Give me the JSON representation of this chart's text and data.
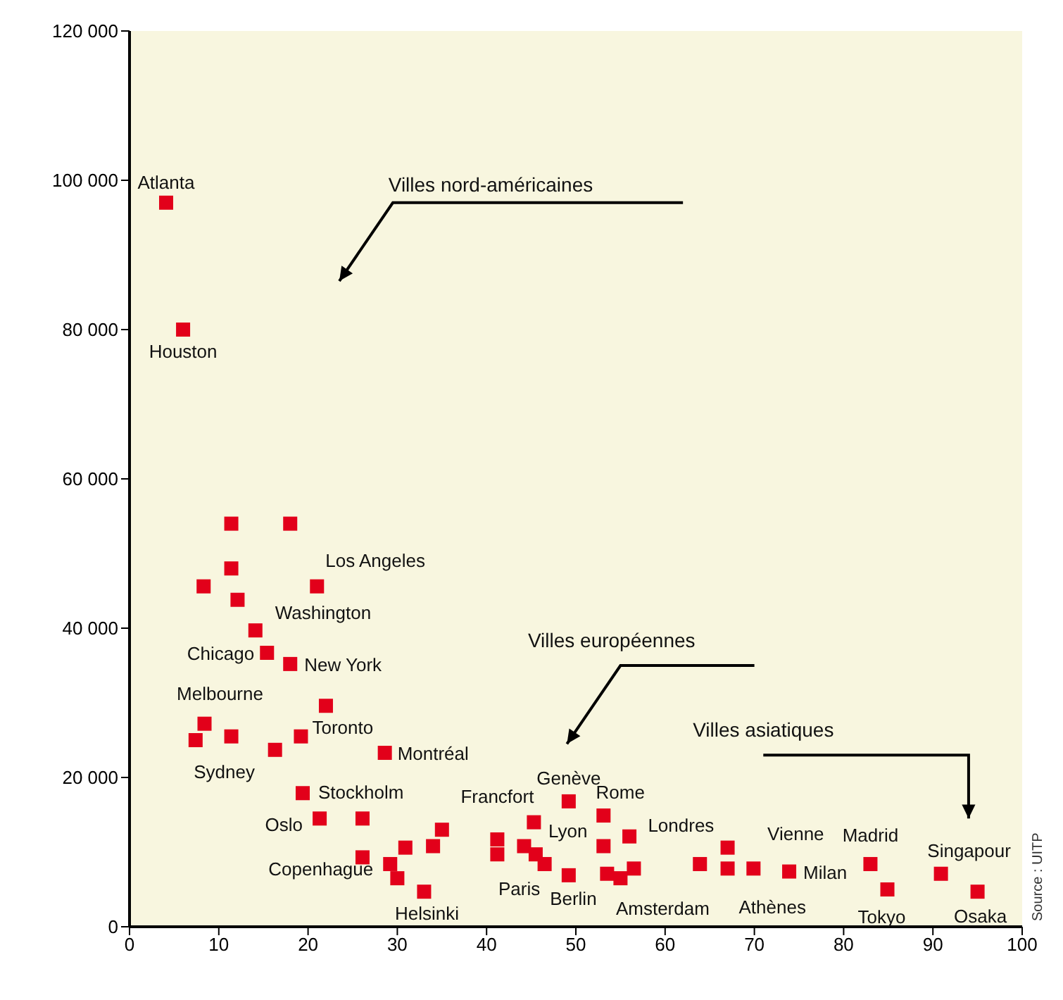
{
  "chart_data": {
    "type": "scatter",
    "marker": "square",
    "grid": false,
    "legend": false,
    "xlim": [
      0,
      100
    ],
    "xticks": [
      0,
      10,
      20,
      30,
      40,
      50,
      60,
      70,
      80,
      90,
      100
    ],
    "ylim": [
      0,
      120000
    ],
    "yticks": [
      {
        "value": 0,
        "label": "0"
      },
      {
        "value": 20000,
        "label": "20 000"
      },
      {
        "value": 40000,
        "label": "40 000"
      },
      {
        "value": 60000,
        "label": "60 000"
      },
      {
        "value": 80000,
        "label": "80 000"
      },
      {
        "value": 100000,
        "label": "100 000"
      },
      {
        "value": 120000,
        "label": "120 000"
      }
    ],
    "series": [
      {
        "color": "#e2001a",
        "x": [
          4.1,
          6,
          11.4,
          18,
          11.4,
          8.3,
          12.1,
          21,
          14.1,
          15.4,
          18,
          22,
          8.4,
          7.4,
          11.4,
          16.3,
          19.2,
          28.6,
          19.4,
          21.3,
          26.1,
          26.1,
          29.2,
          30,
          33,
          30.9,
          34,
          35,
          41.2,
          41.2,
          45.3,
          44.2,
          45.5,
          46.5,
          49.2,
          49.2,
          53.1,
          53.1,
          56,
          53.5,
          56.5,
          55,
          63.9,
          67,
          67,
          69.9,
          73.9,
          83,
          84.9,
          90.9,
          95
        ],
        "values": [
          97000,
          80000,
          54000,
          54000,
          48000,
          45600,
          43800,
          45600,
          39700,
          36700,
          35200,
          29600,
          27200,
          25000,
          25500,
          23700,
          25500,
          23300,
          17900,
          14500,
          14500,
          9300,
          8400,
          6500,
          4700,
          10600,
          10800,
          13000,
          11700,
          9700,
          14000,
          10800,
          9700,
          8400,
          16800,
          6900,
          14900,
          10800,
          12100,
          7100,
          7800,
          6500,
          8400,
          10600,
          7800,
          7800,
          7400,
          8400,
          5000,
          7100,
          4700
        ],
        "value_labels": [
          "Atlanta",
          "Houston",
          null,
          null,
          null,
          null,
          null,
          "Los Angeles",
          "Washington",
          "Chicago",
          "New York",
          null,
          null,
          null,
          "Melbourne",
          "Sydney",
          "Toronto",
          "Montréal",
          "Stockholm",
          "Oslo",
          null,
          null,
          "Copenhague",
          null,
          "Helsinki",
          null,
          null,
          null,
          null,
          null,
          "Francfort",
          null,
          "Lyon",
          "Paris",
          "Genève",
          null,
          "Rome",
          null,
          null,
          "Berlin",
          "Londres",
          "Amsterdam",
          null,
          null,
          "Athènes",
          "Vienne",
          "Milan",
          "Madrid",
          "Tokyo",
          "Singapour",
          "Osaka"
        ]
      }
    ],
    "annotations": [
      "Villes nord-américaines",
      "Villes européennes",
      "Villes asiatiques",
      "Source : UITP"
    ]
  }
}
